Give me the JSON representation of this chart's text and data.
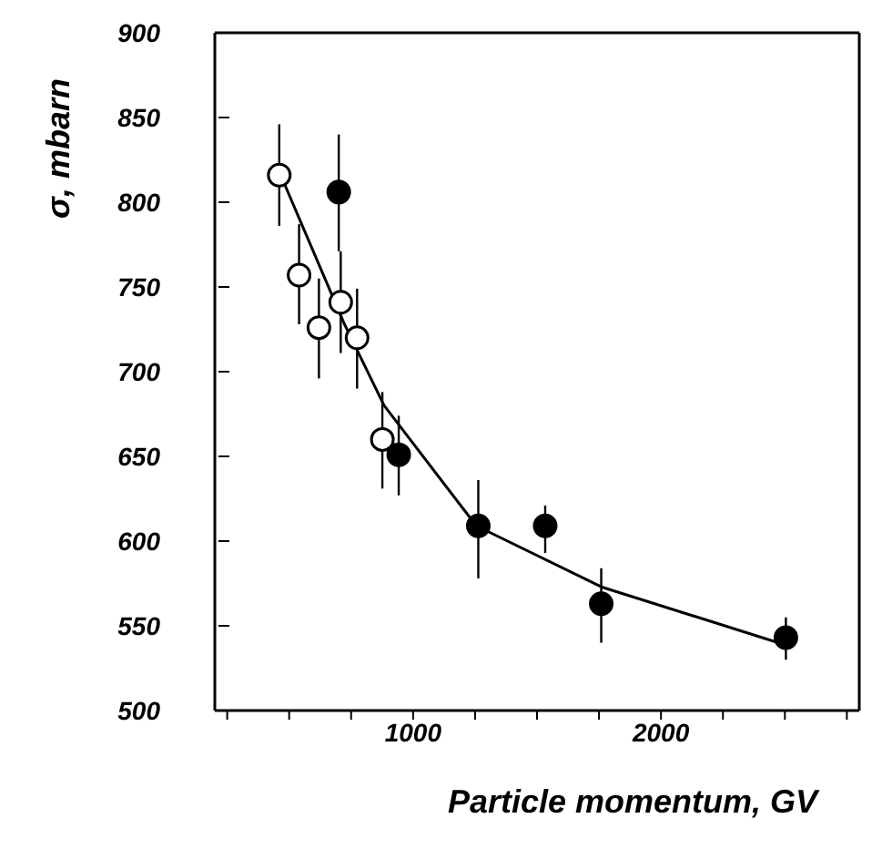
{
  "chart_data": {
    "type": "scatter",
    "xlabel": "Particle momentum, GV",
    "ylabel": "σ, mbarn",
    "xlim": [
      200,
      2800
    ],
    "xticks": [
      {
        "value": 250,
        "label": null
      },
      {
        "value": 500,
        "label": null
      },
      {
        "value": 750,
        "label": null
      },
      1000,
      {
        "value": 1250,
        "label": null
      },
      {
        "value": 1500,
        "label": null
      },
      {
        "value": 1750,
        "label": null
      },
      2000,
      {
        "value": 2250,
        "label": null
      },
      {
        "value": 2500,
        "label": null
      },
      {
        "value": 2750,
        "label": null
      }
    ],
    "ylim": [
      500,
      900
    ],
    "yticks": [
      500,
      550,
      600,
      650,
      700,
      750,
      800,
      850,
      900
    ],
    "marker": "circle",
    "series": [
      {
        "color": "#ffffff",
        "x": [
          460,
          540,
          620,
          708,
          774,
          876
        ],
        "values": [
          816,
          757,
          726,
          741,
          720,
          660
        ],
        "errors": [
          [
            786,
            846
          ],
          [
            728,
            787
          ],
          [
            696,
            755
          ],
          [
            711,
            771
          ],
          [
            690,
            749
          ],
          [
            631,
            688
          ]
        ]
      },
      {
        "color": "#000000",
        "x": [
          700,
          942,
          1263,
          1533,
          1759,
          2504
        ],
        "values": [
          806,
          651,
          609,
          609,
          563,
          543
        ],
        "errors": [
          [
            771,
            840
          ],
          [
            627,
            674
          ],
          [
            578,
            636
          ],
          [
            593,
            621
          ],
          [
            540,
            584
          ],
          [
            530,
            555
          ]
        ]
      },
      {
        "type": "line",
        "color": "#000000",
        "marker": "none",
        "x": [
          460,
          723,
          883,
          1255,
          1759,
          2496
        ],
        "values": [
          818,
          728,
          680,
          609,
          573,
          539
        ]
      }
    ]
  }
}
